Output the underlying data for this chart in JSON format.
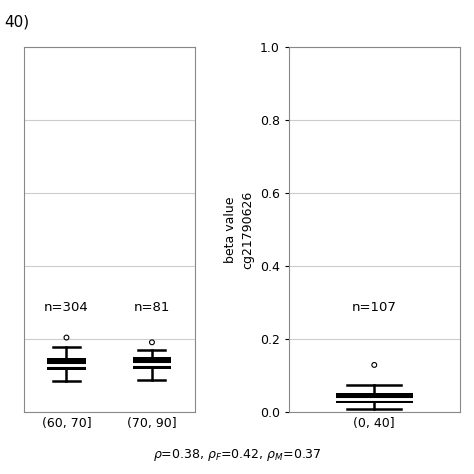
{
  "title_text": "40)",
  "ylabel": "beta value\ncg21790626",
  "left_boxes": [
    {
      "label": "(60, 70]",
      "n": "n=304",
      "median": 0.13,
      "q1": 0.115,
      "q3": 0.148,
      "whisker_low": 0.085,
      "whisker_high": 0.178,
      "outlier_high": 0.205,
      "outlier_low": null
    },
    {
      "label": "(70, 90]",
      "n": "n=81",
      "median": 0.133,
      "q1": 0.118,
      "q3": 0.153,
      "whisker_low": 0.09,
      "whisker_high": 0.172,
      "outlier_high": 0.192,
      "outlier_low": null
    }
  ],
  "right_boxes": [
    {
      "label": "(0, 40]",
      "n": "n=107",
      "median": 0.038,
      "q1": 0.025,
      "q3": 0.052,
      "whisker_low": 0.008,
      "whisker_high": 0.075,
      "outlier_high": 0.13,
      "outlier_low": null
    }
  ],
  "ylim": [
    0.0,
    1.0
  ],
  "yticks": [
    0.0,
    0.2,
    0.4,
    0.6,
    0.8,
    1.0
  ],
  "bg_color": "#ffffff",
  "grid_color": "#cccccc",
  "linewidth": 1.8,
  "box_width": 0.45,
  "fontsize": 11,
  "tick_fontsize": 9,
  "n_fontsize": 9.5
}
